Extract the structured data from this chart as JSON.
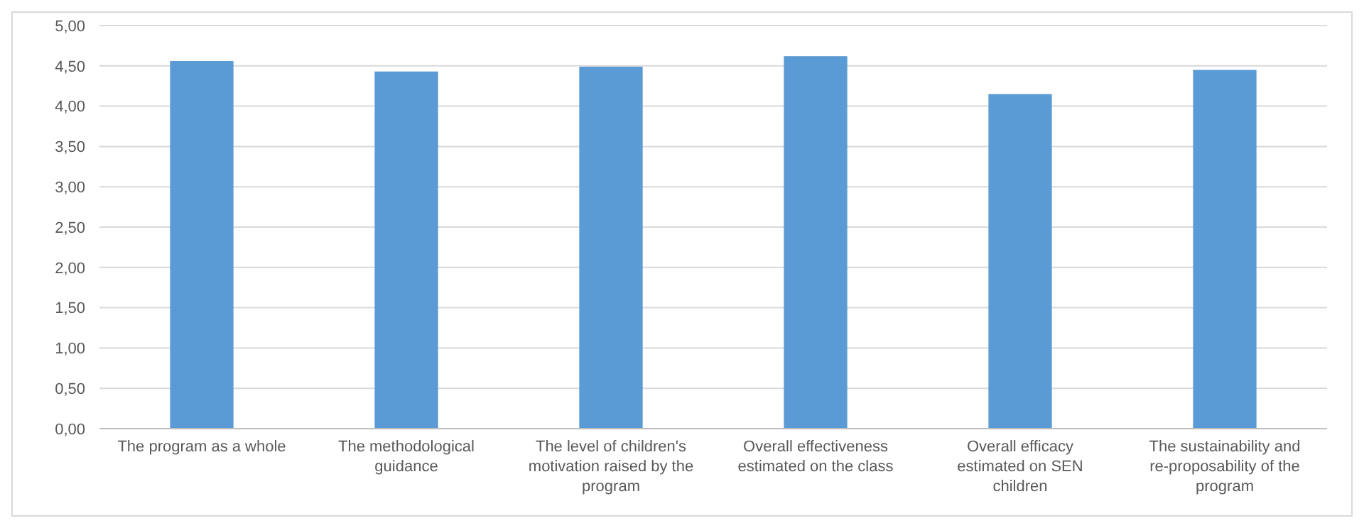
{
  "chart_data": {
    "type": "bar",
    "categories": [
      "The program as a whole",
      "The methodological guidance",
      "The level of children's motivation raised by the program",
      "Overall effectiveness estimated on the class",
      "Overall efficacy estimated on SEN children",
      "The sustainability and re-proposability of the program"
    ],
    "values": [
      4.56,
      4.43,
      4.49,
      4.62,
      4.15,
      4.45
    ],
    "color": "#5b9bd5",
    "ylim": [
      0,
      5
    ],
    "yticks": [
      {
        "value": 0,
        "label": "0,00"
      },
      {
        "value": 0.5,
        "label": "0,50"
      },
      {
        "value": 1,
        "label": "1,00"
      },
      {
        "value": 1.5,
        "label": "1,50"
      },
      {
        "value": 2,
        "label": "2,00"
      },
      {
        "value": 2.5,
        "label": "2,50"
      },
      {
        "value": 3,
        "label": "3,00"
      },
      {
        "value": 3.5,
        "label": "3,50"
      },
      {
        "value": 4,
        "label": "4,00"
      },
      {
        "value": 4.5,
        "label": "4,50"
      },
      {
        "value": 5,
        "label": "5,00"
      }
    ],
    "grid": "y"
  }
}
